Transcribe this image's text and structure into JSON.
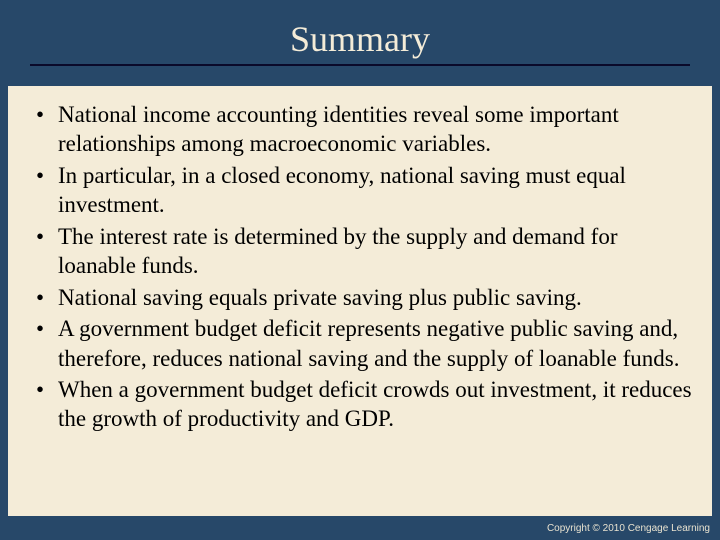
{
  "colors": {
    "slide_bg": "#274869",
    "content_bg": "#f4ecd8",
    "title_color": "#f4ecd8",
    "rule_color": "#0a0a2a",
    "text_color": "#000000",
    "copyright_color": "#e8e2d0"
  },
  "title": "Summary",
  "bullets": [
    "National income accounting identities reveal some important relationships among macroeconomic variables.",
    "In particular, in a closed economy, national saving must equal investment.",
    "The interest rate is determined by the supply and demand for loanable funds.",
    "National saving equals private saving plus public saving.",
    "A government budget deficit represents negative public saving and, therefore, reduces national saving and the supply of loanable funds.",
    "When a government budget deficit crowds out investment, it reduces the growth of productivity and GDP."
  ],
  "copyright": "Copyright © 2010 Cengage Learning"
}
